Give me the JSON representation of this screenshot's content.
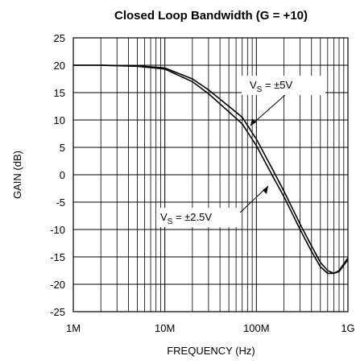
{
  "chart_data": {
    "type": "line",
    "title": "Closed Loop Bandwidth (G = +10)",
    "xlabel": "FREQUENCY (Hz)",
    "ylabel": "GAIN (dB)",
    "xscale": "log",
    "xlim": [
      1000000,
      1000000000
    ],
    "xticks": [
      {
        "value": 1000000,
        "label": "1M"
      },
      {
        "value": 10000000,
        "label": "10M"
      },
      {
        "value": 100000000,
        "label": "100M"
      },
      {
        "value": 1000000000,
        "label": "1G"
      }
    ],
    "x_minor_ticks": [
      2000000,
      3000000,
      4000000,
      5000000,
      6000000,
      7000000,
      8000000,
      9000000,
      20000000,
      30000000,
      40000000,
      50000000,
      60000000,
      70000000,
      80000000,
      90000000,
      200000000,
      300000000,
      400000000,
      500000000,
      600000000,
      700000000,
      800000000,
      900000000
    ],
    "ylim": [
      -25,
      25
    ],
    "yticks": [
      25,
      20,
      15,
      10,
      5,
      0,
      -5,
      -10,
      -15,
      -20,
      -25
    ],
    "grid": true,
    "x": [
      1000000,
      2000000,
      5000000,
      10000000,
      20000000,
      30000000,
      50000000,
      70000000,
      100000000,
      150000000,
      200000000,
      300000000,
      400000000,
      500000000,
      600000000,
      700000000,
      800000000,
      1000000000
    ],
    "series": [
      {
        "name": "VS = ±5V",
        "color": "#000000",
        "values": [
          20,
          20,
          19.9,
          19.5,
          17.5,
          15.5,
          12.5,
          10.5,
          6.5,
          1,
          -3,
          -9,
          -13,
          -16,
          -17.5,
          -18,
          -17.7,
          -15.5
        ],
        "label_main": "V",
        "label_sub": "S",
        "label_rest": " = ±5V"
      },
      {
        "name": "VS = ±2.5V",
        "color": "#000000",
        "values": [
          20,
          20,
          19.8,
          19.3,
          17,
          14.8,
          11.5,
          9.3,
          5.3,
          -0.2,
          -4,
          -10,
          -14,
          -16.8,
          -18,
          -18,
          -17.5,
          -15.2
        ],
        "label_main": "V",
        "label_sub": "S",
        "label_rest": " = ±2.5V"
      }
    ]
  }
}
